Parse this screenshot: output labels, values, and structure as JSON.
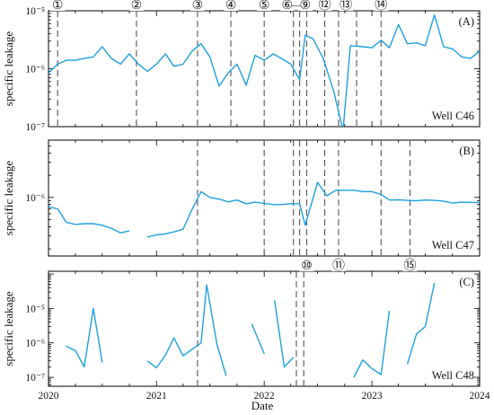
{
  "figure": {
    "xlabel": "Date",
    "x_ticks": [
      "2020",
      "2021",
      "2022",
      "2023",
      "2024"
    ],
    "ylabel": "specific leakage",
    "series_color": "#1ea0e0",
    "event_line_color": "#555555"
  },
  "chart_data": [
    {
      "type": "line",
      "panel": "(A)",
      "well": "Well C46",
      "ylabel": "specific leakage",
      "yscale": "log",
      "ylim": [
        1e-07,
        1e-05
      ],
      "y_ticks": [
        {
          "value": 1e-07,
          "label": "10⁻⁷"
        },
        {
          "value": 1e-06,
          "label": "10⁻⁶"
        },
        {
          "value": 1e-05,
          "label": "10⁻⁵"
        }
      ],
      "xlim": [
        "2020-01-01",
        "2024-01-01"
      ],
      "events": [
        "2020-02-01",
        "2020-10-25",
        "2021-05-20",
        "2021-09-10",
        "2022-01-01",
        "2022-04-10",
        "2022-05-01",
        "2022-05-25",
        "2022-07-25",
        "2022-09-10",
        "2022-11-10",
        "2023-02-01"
      ],
      "event_markers": [
        {
          "label": "①",
          "date": "2020-02-01"
        },
        {
          "label": "②",
          "date": "2020-10-25"
        },
        {
          "label": "③",
          "date": "2021-05-20"
        },
        {
          "label": "④",
          "date": "2021-09-10"
        },
        {
          "label": "⑤",
          "date": "2022-01-01"
        },
        {
          "label": "⑥",
          "date": "2022-03-20"
        },
        {
          "label": "⑨",
          "date": "2022-05-20"
        },
        {
          "label": "⑫",
          "date": "2022-07-25"
        },
        {
          "label": "⑬",
          "date": "2022-10-05"
        },
        {
          "label": "⑭",
          "date": "2023-02-01"
        }
      ],
      "marker_range": {
        "text": "—",
        "from": "2022-03-20",
        "to": "2022-05-20"
      },
      "series": [
        {
          "segments": [
            [
              [
                "2020-01-01",
                8.5e-07
              ],
              [
                "2020-02-01",
                1.2e-06
              ],
              [
                "2020-03-01",
                1.4e-06
              ],
              [
                "2020-04-01",
                1.4e-06
              ],
              [
                "2020-05-01",
                1.5e-06
              ],
              [
                "2020-06-01",
                1.6e-06
              ],
              [
                "2020-07-01",
                2.4e-06
              ],
              [
                "2020-08-01",
                1.5e-06
              ],
              [
                "2020-09-01",
                1.2e-06
              ],
              [
                "2020-10-01",
                1.8e-06
              ],
              [
                "2020-11-01",
                1.2e-06
              ],
              [
                "2020-12-01",
                9e-07
              ],
              [
                "2021-01-01",
                1.2e-06
              ],
              [
                "2021-02-01",
                1.8e-06
              ],
              [
                "2021-03-01",
                1.1e-06
              ],
              [
                "2021-04-01",
                1.2e-06
              ],
              [
                "2021-05-01",
                2e-06
              ],
              [
                "2021-06-01",
                2.7e-06
              ],
              [
                "2021-07-01",
                1.6e-06
              ],
              [
                "2021-08-01",
                5e-07
              ],
              [
                "2021-09-01",
                8.5e-07
              ],
              [
                "2021-10-01",
                1.2e-06
              ],
              [
                "2021-11-01",
                5.2e-07
              ],
              [
                "2021-12-01",
                1.7e-06
              ],
              [
                "2022-01-01",
                1.4e-06
              ],
              [
                "2022-02-01",
                1.8e-06
              ],
              [
                "2022-03-01",
                1.5e-06
              ],
              [
                "2022-04-01",
                1.2e-06
              ],
              [
                "2022-05-01",
                6.5e-07
              ],
              [
                "2022-05-20",
                3.8e-06
              ],
              [
                "2022-06-15",
                3.3e-06
              ],
              [
                "2022-07-20",
                1.5e-06
              ],
              [
                "2022-08-25",
                4e-07
              ],
              [
                "2022-09-25",
                8.5e-08
              ],
              [
                "2022-10-20",
                2.5e-06
              ],
              [
                "2022-12-01",
                2.4e-06
              ],
              [
                "2023-01-01",
                2.3e-06
              ],
              [
                "2023-02-01",
                3.1e-06
              ],
              [
                "2023-03-01",
                2.3e-06
              ],
              [
                "2023-04-01",
                5.8e-06
              ],
              [
                "2023-05-01",
                2.7e-06
              ],
              [
                "2023-06-01",
                2.8e-06
              ],
              [
                "2023-07-01",
                2.5e-06
              ],
              [
                "2023-08-01",
                8.5e-06
              ],
              [
                "2023-09-01",
                2.4e-06
              ],
              [
                "2023-10-01",
                2.2e-06
              ],
              [
                "2023-11-01",
                1.6e-06
              ],
              [
                "2023-12-01",
                1.5e-06
              ],
              [
                "2024-01-01",
                2e-06
              ]
            ]
          ]
        }
      ]
    },
    {
      "type": "line",
      "panel": "(B)",
      "well": "Well C47",
      "ylabel": "specific leakage",
      "yscale": "log",
      "ylim": [
        1.6e-07,
        6e-06
      ],
      "y_ticks": [
        {
          "value": 1e-06,
          "label": "10⁻⁶"
        }
      ],
      "xlim": [
        "2020-01-01",
        "2024-01-01"
      ],
      "events": [
        "2021-05-20",
        "2022-01-01",
        "2022-04-10",
        "2022-05-01",
        "2022-05-25",
        "2022-07-25",
        "2022-09-10",
        "2023-02-01",
        "2023-05-10"
      ],
      "series": [
        {
          "segments": [
            [
              [
                "2020-01-01",
                7.5e-07
              ],
              [
                "2020-02-01",
                7e-07
              ],
              [
                "2020-03-01",
                4.6e-07
              ],
              [
                "2020-04-01",
                4.3e-07
              ],
              [
                "2020-05-01",
                4.4e-07
              ],
              [
                "2020-06-01",
                4.4e-07
              ],
              [
                "2020-07-01",
                4.2e-07
              ],
              [
                "2020-08-01",
                3.8e-07
              ],
              [
                "2020-09-01",
                3.3e-07
              ],
              [
                "2020-10-01",
                3.5e-07
              ]
            ],
            [
              [
                "2020-12-01",
                2.9e-07
              ],
              [
                "2021-01-01",
                3.1e-07
              ],
              [
                "2021-02-01",
                3.2e-07
              ],
              [
                "2021-03-01",
                3.4e-07
              ],
              [
                "2021-04-01",
                3.7e-07
              ],
              [
                "2021-05-01",
                6.8e-07
              ],
              [
                "2021-06-01",
                1.2e-06
              ],
              [
                "2021-07-01",
                1e-06
              ],
              [
                "2021-08-01",
                9.5e-07
              ],
              [
                "2021-09-01",
                8.7e-07
              ],
              [
                "2021-10-01",
                9.2e-07
              ],
              [
                "2021-11-01",
                8.2e-07
              ],
              [
                "2021-12-01",
                8.6e-07
              ],
              [
                "2022-01-01",
                8.3e-07
              ],
              [
                "2022-02-01",
                8e-07
              ],
              [
                "2022-03-01",
                8e-07
              ],
              [
                "2022-04-01",
                8.2e-07
              ],
              [
                "2022-05-01",
                8.2e-07
              ],
              [
                "2022-05-20",
                4.2e-07
              ],
              [
                "2022-07-01",
                1.6e-06
              ],
              [
                "2022-08-01",
                1.05e-06
              ],
              [
                "2022-09-01",
                1.25e-06
              ],
              [
                "2022-10-01",
                1.25e-06
              ],
              [
                "2022-11-01",
                1.25e-06
              ],
              [
                "2022-12-01",
                1.2e-06
              ],
              [
                "2023-01-01",
                1.2e-06
              ],
              [
                "2023-02-01",
                1.1e-06
              ],
              [
                "2023-03-01",
                9.2e-07
              ],
              [
                "2023-04-01",
                9.3e-07
              ],
              [
                "2023-05-01",
                9.1e-07
              ],
              [
                "2023-06-01",
                9e-07
              ],
              [
                "2023-07-01",
                9.2e-07
              ],
              [
                "2023-08-01",
                9.1e-07
              ],
              [
                "2023-09-01",
                8.9e-07
              ],
              [
                "2023-10-01",
                8.4e-07
              ],
              [
                "2023-11-01",
                8.6e-07
              ],
              [
                "2024-01-01",
                8.5e-07
              ]
            ]
          ]
        }
      ]
    },
    {
      "type": "line",
      "panel": "(C)",
      "well": "Well C48",
      "ylabel": "specific leakage",
      "yscale": "log",
      "ylim": [
        5.5e-08,
        0.00012
      ],
      "y_ticks": [
        {
          "value": 1e-07,
          "label": "10⁻⁷"
        },
        {
          "value": 1e-06,
          "label": "10⁻⁶"
        },
        {
          "value": 1e-05,
          "label": "10⁻⁵"
        }
      ],
      "xlim": [
        "2020-01-01",
        "2024-01-01"
      ],
      "events": [
        "2021-05-20",
        "2022-04-20",
        "2022-05-15"
      ],
      "event_markers": [
        {
          "label": "⑩",
          "date": "2022-05-25"
        },
        {
          "label": "⑪",
          "date": "2022-09-10"
        },
        {
          "label": "⑮",
          "date": "2023-05-10"
        }
      ],
      "series": [
        {
          "segments": [
            [
              [
                "2020-03-01",
                8e-07
              ],
              [
                "2020-04-01",
                6e-07
              ],
              [
                "2020-05-01",
                2e-07
              ],
              [
                "2020-06-01",
                1e-05
              ],
              [
                "2020-07-01",
                2.7e-07
              ]
            ],
            [
              [
                "2020-12-01",
                3e-07
              ],
              [
                "2021-01-01",
                1.9e-07
              ],
              [
                "2021-02-01",
                4.5e-07
              ],
              [
                "2021-03-01",
                1.4e-06
              ],
              [
                "2021-04-01",
                4.2e-07
              ],
              [
                "2021-05-01",
                6.5e-07
              ],
              [
                "2021-06-01",
                1e-06
              ],
              [
                "2021-06-20",
                4.8e-05
              ],
              [
                "2021-07-25",
                9e-07
              ],
              [
                "2021-08-25",
                1.1e-07
              ]
            ],
            [
              [
                "2021-11-20",
                3.5e-06
              ],
              [
                "2022-01-01",
                4.8e-07
              ]
            ],
            [
              [
                "2022-02-05",
                1.7e-05
              ],
              [
                "2022-03-10",
                2e-07
              ],
              [
                "2022-04-10",
                3.8e-07
              ]
            ],
            [
              [
                "2022-11-01",
                1e-07
              ],
              [
                "2022-12-01",
                3.2e-07
              ],
              [
                "2023-01-01",
                1.8e-07
              ],
              [
                "2023-02-01",
                1.2e-07
              ],
              [
                "2023-03-01",
                8.5e-06
              ]
            ],
            [
              [
                "2023-05-01",
                2.4e-07
              ],
              [
                "2023-06-01",
                1.8e-06
              ],
              [
                "2023-07-01",
                3e-06
              ],
              [
                "2023-08-01",
                5.5e-05
              ]
            ]
          ]
        }
      ]
    }
  ]
}
